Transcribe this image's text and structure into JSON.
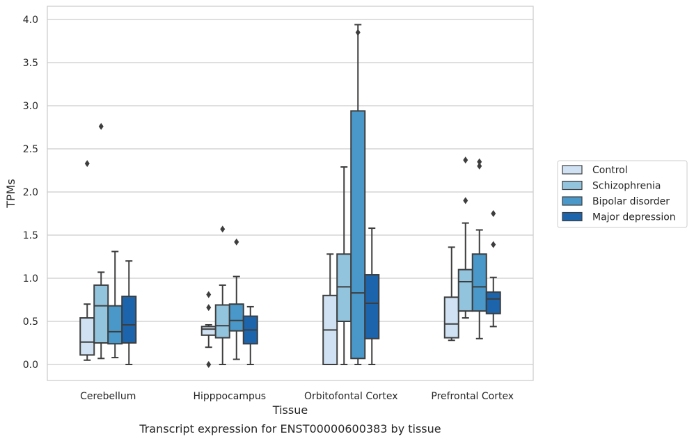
{
  "chart_data": {
    "type": "boxplot",
    "title": "",
    "caption": "Transcript expression for ENST00000600383 by tissue",
    "xlabel": "Tissue",
    "ylabel": "TPMs",
    "ylim": [
      -0.19,
      4.15
    ],
    "yticks": [
      "0.0",
      "0.5",
      "1.0",
      "1.5",
      "2.0",
      "2.5",
      "3.0",
      "3.5",
      "4.0"
    ],
    "categories": [
      "Cerebellum",
      "Hipppocampus",
      "Orbitofontal Cortex",
      "Prefrontal Cortex"
    ],
    "grid": "horizontal",
    "legend_position": "right",
    "series": [
      {
        "name": "Control",
        "color": "#cfe1f2",
        "boxes": [
          {
            "whislo": 0.05,
            "q1": 0.11,
            "med": 0.26,
            "q3": 0.54,
            "whishi": 0.7,
            "fliers": [
              2.33
            ]
          },
          {
            "whislo": 0.2,
            "q1": 0.34,
            "med": 0.41,
            "q3": 0.44,
            "whishi": 0.46,
            "fliers": [
              0.0,
              0.66,
              0.81
            ]
          },
          {
            "whislo": 0.0,
            "q1": 0.0,
            "med": 0.4,
            "q3": 0.8,
            "whishi": 1.28,
            "fliers": []
          },
          {
            "whislo": 0.28,
            "q1": 0.31,
            "med": 0.47,
            "q3": 0.78,
            "whishi": 1.36,
            "fliers": []
          }
        ]
      },
      {
        "name": "Schizophrenia",
        "color": "#93c4de",
        "boxes": [
          {
            "whislo": 0.07,
            "q1": 0.25,
            "med": 0.68,
            "q3": 0.92,
            "whishi": 1.07,
            "fliers": [
              2.76
            ]
          },
          {
            "whislo": 0.0,
            "q1": 0.31,
            "med": 0.45,
            "q3": 0.69,
            "whishi": 0.92,
            "fliers": [
              1.57
            ]
          },
          {
            "whislo": 0.0,
            "q1": 0.5,
            "med": 0.9,
            "q3": 1.28,
            "whishi": 2.29,
            "fliers": []
          },
          {
            "whislo": 0.54,
            "q1": 0.62,
            "med": 0.96,
            "q3": 1.1,
            "whishi": 1.64,
            "fliers": [
              1.9,
              2.37
            ]
          }
        ]
      },
      {
        "name": "Bipolar disorder",
        "color": "#4a98c9",
        "boxes": [
          {
            "whislo": 0.08,
            "q1": 0.24,
            "med": 0.38,
            "q3": 0.68,
            "whishi": 1.31,
            "fliers": []
          },
          {
            "whislo": 0.06,
            "q1": 0.39,
            "med": 0.51,
            "q3": 0.7,
            "whishi": 1.02,
            "fliers": [
              1.42
            ]
          },
          {
            "whislo": 0.0,
            "q1": 0.07,
            "med": 0.83,
            "q3": 2.94,
            "whishi": 3.94,
            "fliers": [
              3.85
            ]
          },
          {
            "whislo": 0.3,
            "q1": 0.62,
            "med": 0.9,
            "q3": 1.28,
            "whishi": 1.56,
            "fliers": [
              2.3,
              2.35
            ]
          }
        ]
      },
      {
        "name": "Major depression",
        "color": "#1c65ac",
        "boxes": [
          {
            "whislo": 0.0,
            "q1": 0.25,
            "med": 0.46,
            "q3": 0.79,
            "whishi": 1.2,
            "fliers": []
          },
          {
            "whislo": 0.0,
            "q1": 0.24,
            "med": 0.4,
            "q3": 0.56,
            "whishi": 0.67,
            "fliers": []
          },
          {
            "whislo": 0.0,
            "q1": 0.3,
            "med": 0.71,
            "q3": 1.04,
            "whishi": 1.58,
            "fliers": []
          },
          {
            "whislo": 0.44,
            "q1": 0.59,
            "med": 0.76,
            "q3": 0.84,
            "whishi": 1.01,
            "fliers": [
              1.39,
              1.75
            ]
          }
        ]
      }
    ]
  }
}
